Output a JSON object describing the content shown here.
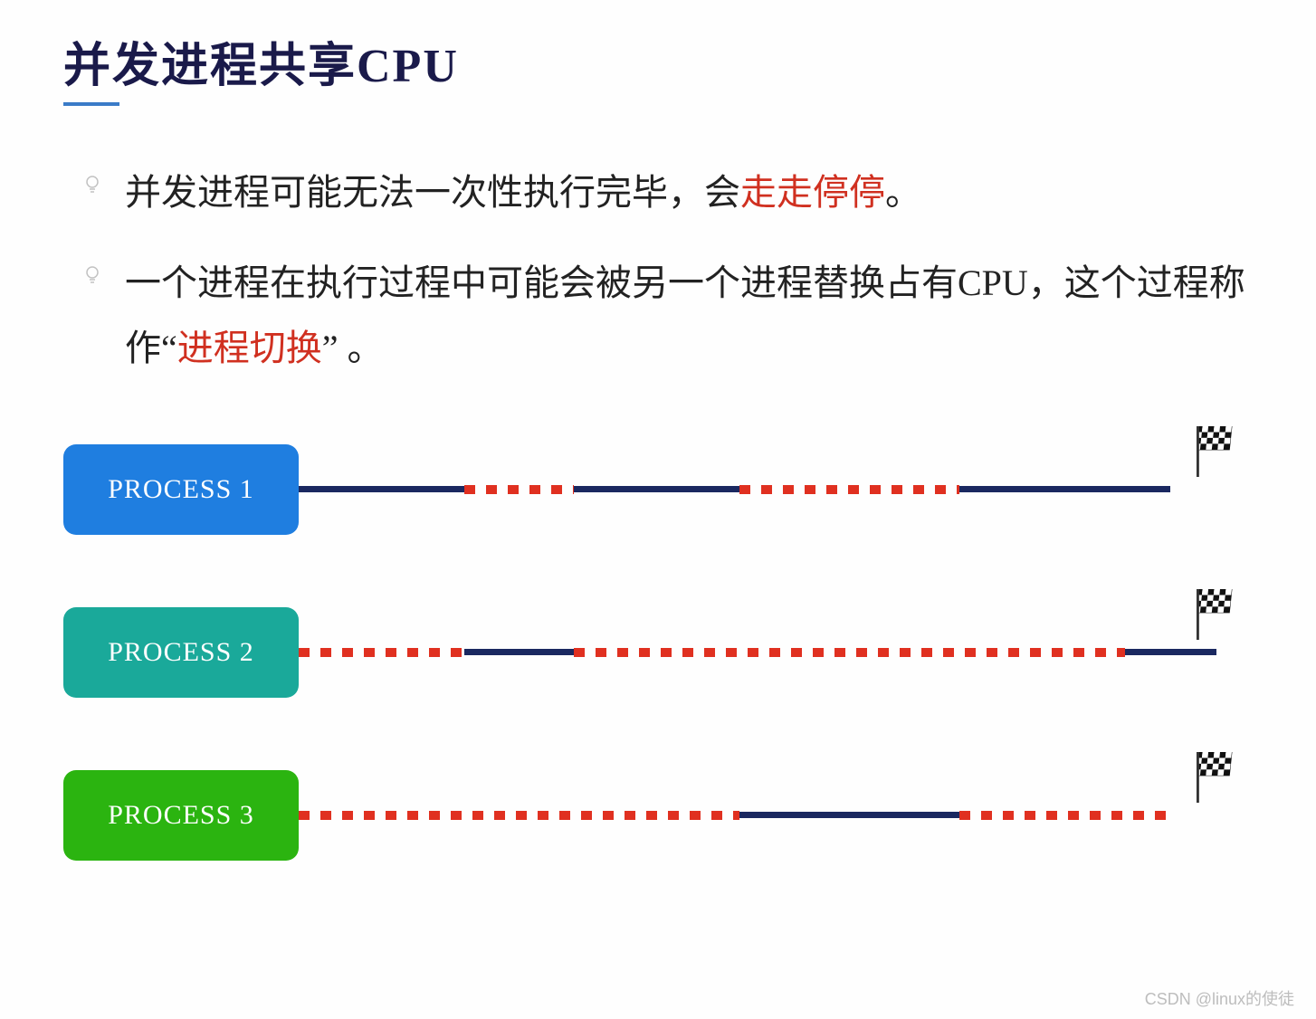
{
  "title": "并发进程共享CPU",
  "title_underline_color": "#3a7bc8",
  "bullets": [
    {
      "pre": "并发进程可能无法一次性执行完毕，会",
      "hl": "走走停停",
      "post": "。"
    },
    {
      "pre": "一个进程在执行过程中可能会被另一个进程替换占有CPU，这个过程称作“",
      "hl": "进程切换",
      "post": "” 。"
    }
  ],
  "processes": [
    {
      "label": "PROCESS 1",
      "box_color": "#1f7ee0",
      "segments": [
        {
          "type": "solid",
          "start": 0,
          "end": 18
        },
        {
          "type": "dashed",
          "start": 18,
          "end": 30
        },
        {
          "type": "solid",
          "start": 30,
          "end": 48
        },
        {
          "type": "dashed",
          "start": 48,
          "end": 72
        },
        {
          "type": "solid",
          "start": 72,
          "end": 95
        }
      ]
    },
    {
      "label": "PROCESS 2",
      "box_color": "#1aa99a",
      "segments": [
        {
          "type": "dashed",
          "start": 0,
          "end": 18
        },
        {
          "type": "solid",
          "start": 18,
          "end": 30
        },
        {
          "type": "dashed",
          "start": 30,
          "end": 90
        },
        {
          "type": "solid",
          "start": 90,
          "end": 100
        }
      ]
    },
    {
      "label": "PROCESS 3",
      "box_color": "#2bb410",
      "segments": [
        {
          "type": "dashed",
          "start": 0,
          "end": 48
        },
        {
          "type": "solid",
          "start": 48,
          "end": 72
        },
        {
          "type": "dashed",
          "start": 72,
          "end": 95
        }
      ]
    }
  ],
  "colors": {
    "solid_line": "#1a2860",
    "dashed_line": "#e03020",
    "highlight_text": "#d03020",
    "title_text": "#1a1a4a"
  },
  "watermark": "CSDN @linux的使徒"
}
